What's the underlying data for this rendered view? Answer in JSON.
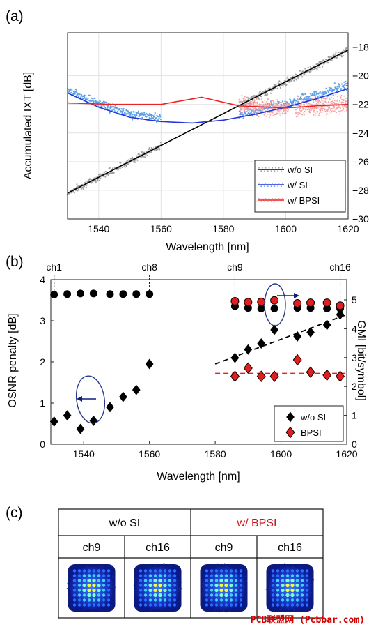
{
  "panels": {
    "a": "(a)",
    "b": "(b)",
    "c": "(c)"
  },
  "chart_data": [
    {
      "type": "line",
      "panel": "(a)",
      "xlabel": "Wavelength [nm]",
      "ylabel": "Accumulated IXT [dB]",
      "xlim": [
        1530,
        1620
      ],
      "ylim": [
        -30,
        -17
      ],
      "xticks": [
        "1540",
        "1560",
        "1580",
        "1600",
        "1620"
      ],
      "yticks": [
        "-30",
        "-28",
        "-26",
        "-24",
        "-22",
        "-20",
        "-18"
      ],
      "grid": true,
      "legend_position": "bottom-right",
      "series": [
        {
          "name": "w/o SI",
          "color": "#000000",
          "scatter_color": "#a0a0a0",
          "x": [
            1530,
            1620
          ],
          "y": [
            -28.2,
            -18.2
          ],
          "scatter_bands": [
            [
              1530,
              1560
            ],
            [
              1585,
              1620
            ]
          ]
        },
        {
          "name": "w/ SI",
          "color": "#2233dd",
          "scatter_color": "#5aa0e8",
          "x": [
            1530,
            1540,
            1550,
            1560,
            1570,
            1580,
            1590,
            1600,
            1610,
            1620
          ],
          "y": [
            -21.2,
            -22.2,
            -22.9,
            -23.2,
            -23.3,
            -23.1,
            -22.7,
            -22.2,
            -21.6,
            -20.9
          ],
          "scatter_bands": [
            [
              1530,
              1560
            ],
            [
              1585,
              1620
            ]
          ]
        },
        {
          "name": "w/ BPSI",
          "color": "#ee2222",
          "scatter_color": "#f5a0a0",
          "x": [
            1530,
            1545,
            1560,
            1573,
            1585,
            1600,
            1610,
            1620
          ],
          "y": [
            -21.9,
            -22.0,
            -22.0,
            -21.5,
            -22.1,
            -22.25,
            -22.1,
            -22.0
          ],
          "scatter_bands": [
            [
              1585,
              1601
            ],
            [
              1603,
              1620
            ]
          ]
        }
      ]
    },
    {
      "type": "scatter",
      "panel": "(b)",
      "xlabel": "Wavelength [nm]",
      "ylabel_left": "OSNR penalty [dB]",
      "ylabel_right": "GMI [bit/symbol]",
      "xlim": [
        1530,
        1620
      ],
      "ylim_left": [
        0,
        4
      ],
      "ylim_right": [
        0,
        5.7
      ],
      "xticks": [
        "1540",
        "1560",
        "1580",
        "1600",
        "1620"
      ],
      "yticks_left": [
        "0",
        "1",
        "2",
        "3",
        "4"
      ],
      "yticks_right": [
        "0",
        "1",
        "2",
        "3",
        "4",
        "5"
      ],
      "channel_markers": [
        {
          "label": "ch1",
          "x": 1531
        },
        {
          "label": "ch8",
          "x": 1560
        },
        {
          "label": "ch9",
          "x": 1586
        },
        {
          "label": "ch16",
          "x": 1618
        }
      ],
      "legend_position": "bottom-right",
      "series": [
        {
          "name": "w/o SI",
          "metric": "OSNR penalty",
          "marker": "diamond",
          "color": "#000000",
          "x": [
            1531,
            1535,
            1539,
            1543,
            1548,
            1552,
            1556,
            1560,
            1586,
            1590,
            1594,
            1598,
            1605,
            1609,
            1614,
            1618
          ],
          "y": [
            0.55,
            0.7,
            0.37,
            0.57,
            0.9,
            1.15,
            1.32,
            1.95,
            2.1,
            2.3,
            2.45,
            2.78,
            2.62,
            2.72,
            2.9,
            3.15
          ]
        },
        {
          "name": "BPSI",
          "metric": "OSNR penalty",
          "marker": "diamond",
          "color": "#e02020",
          "x": [
            1586,
            1590,
            1594,
            1598,
            1605,
            1609,
            1614,
            1618
          ],
          "y": [
            1.65,
            1.85,
            1.65,
            1.65,
            2.05,
            1.75,
            1.68,
            1.65
          ]
        },
        {
          "name": "w/o SI",
          "metric": "GMI",
          "marker": "circle",
          "color": "#000000",
          "x": [
            1531,
            1535,
            1539,
            1543,
            1548,
            1552,
            1556,
            1560,
            1586,
            1590,
            1594,
            1598,
            1605,
            1609,
            1614,
            1618
          ],
          "y": [
            5.18,
            5.2,
            5.22,
            5.22,
            5.2,
            5.2,
            5.2,
            5.2,
            4.78,
            4.72,
            4.7,
            4.7,
            4.72,
            4.72,
            4.7,
            4.7
          ]
        },
        {
          "name": "BPSI",
          "metric": "GMI",
          "marker": "circle",
          "color": "#e02020",
          "x": [
            1586,
            1590,
            1594,
            1598,
            1605,
            1609,
            1614,
            1618
          ],
          "y": [
            4.95,
            4.92,
            4.93,
            4.98,
            4.88,
            4.9,
            4.9,
            4.8
          ]
        }
      ],
      "trend_lines": [
        {
          "color": "#000000",
          "dashed": true,
          "x": [
            1580,
            1620
          ],
          "y": [
            1.95,
            3.15
          ]
        },
        {
          "color": "#e02020",
          "dashed": true,
          "x": [
            1580,
            1620
          ],
          "y": [
            1.72,
            1.72
          ]
        }
      ]
    }
  ],
  "table": {
    "header_groups": [
      {
        "label": "w/o SI",
        "color": "#000000"
      },
      {
        "label": "w/ BPSI",
        "color": "#d01010"
      }
    ],
    "channels": [
      "ch9",
      "ch16",
      "ch9",
      "ch16"
    ]
  },
  "watermark": "PCB联盟网 (Pcbbar.com)"
}
